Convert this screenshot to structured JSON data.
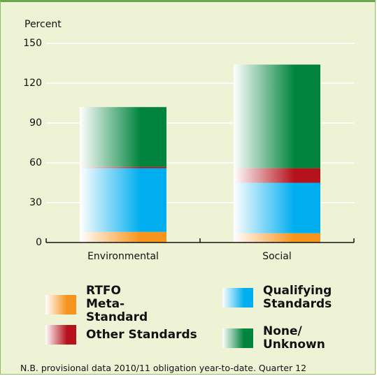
{
  "chart_data": {
    "type": "stacked_bar",
    "y_label": "Percent",
    "categories": [
      "Environmental",
      "Social"
    ],
    "series": [
      {
        "name": "RTFO Meta-Standard",
        "color": "#f7941d",
        "values": [
          8,
          7
        ]
      },
      {
        "name": "Qualifying Standards",
        "color": "#00aeef",
        "values": [
          48,
          38
        ]
      },
      {
        "name": "Other Standards",
        "color": "#b5121b",
        "values": [
          1,
          11
        ]
      },
      {
        "name": "None/ Unknown",
        "color": "#00843d",
        "values": [
          45,
          78
        ]
      }
    ],
    "ylim": [
      0,
      150
    ],
    "yticks": [
      0,
      30,
      60,
      90,
      120,
      150
    ],
    "grid": true,
    "note": "N.B. provisional data 2010/11 obligation year-to-date. Quarter 12"
  }
}
